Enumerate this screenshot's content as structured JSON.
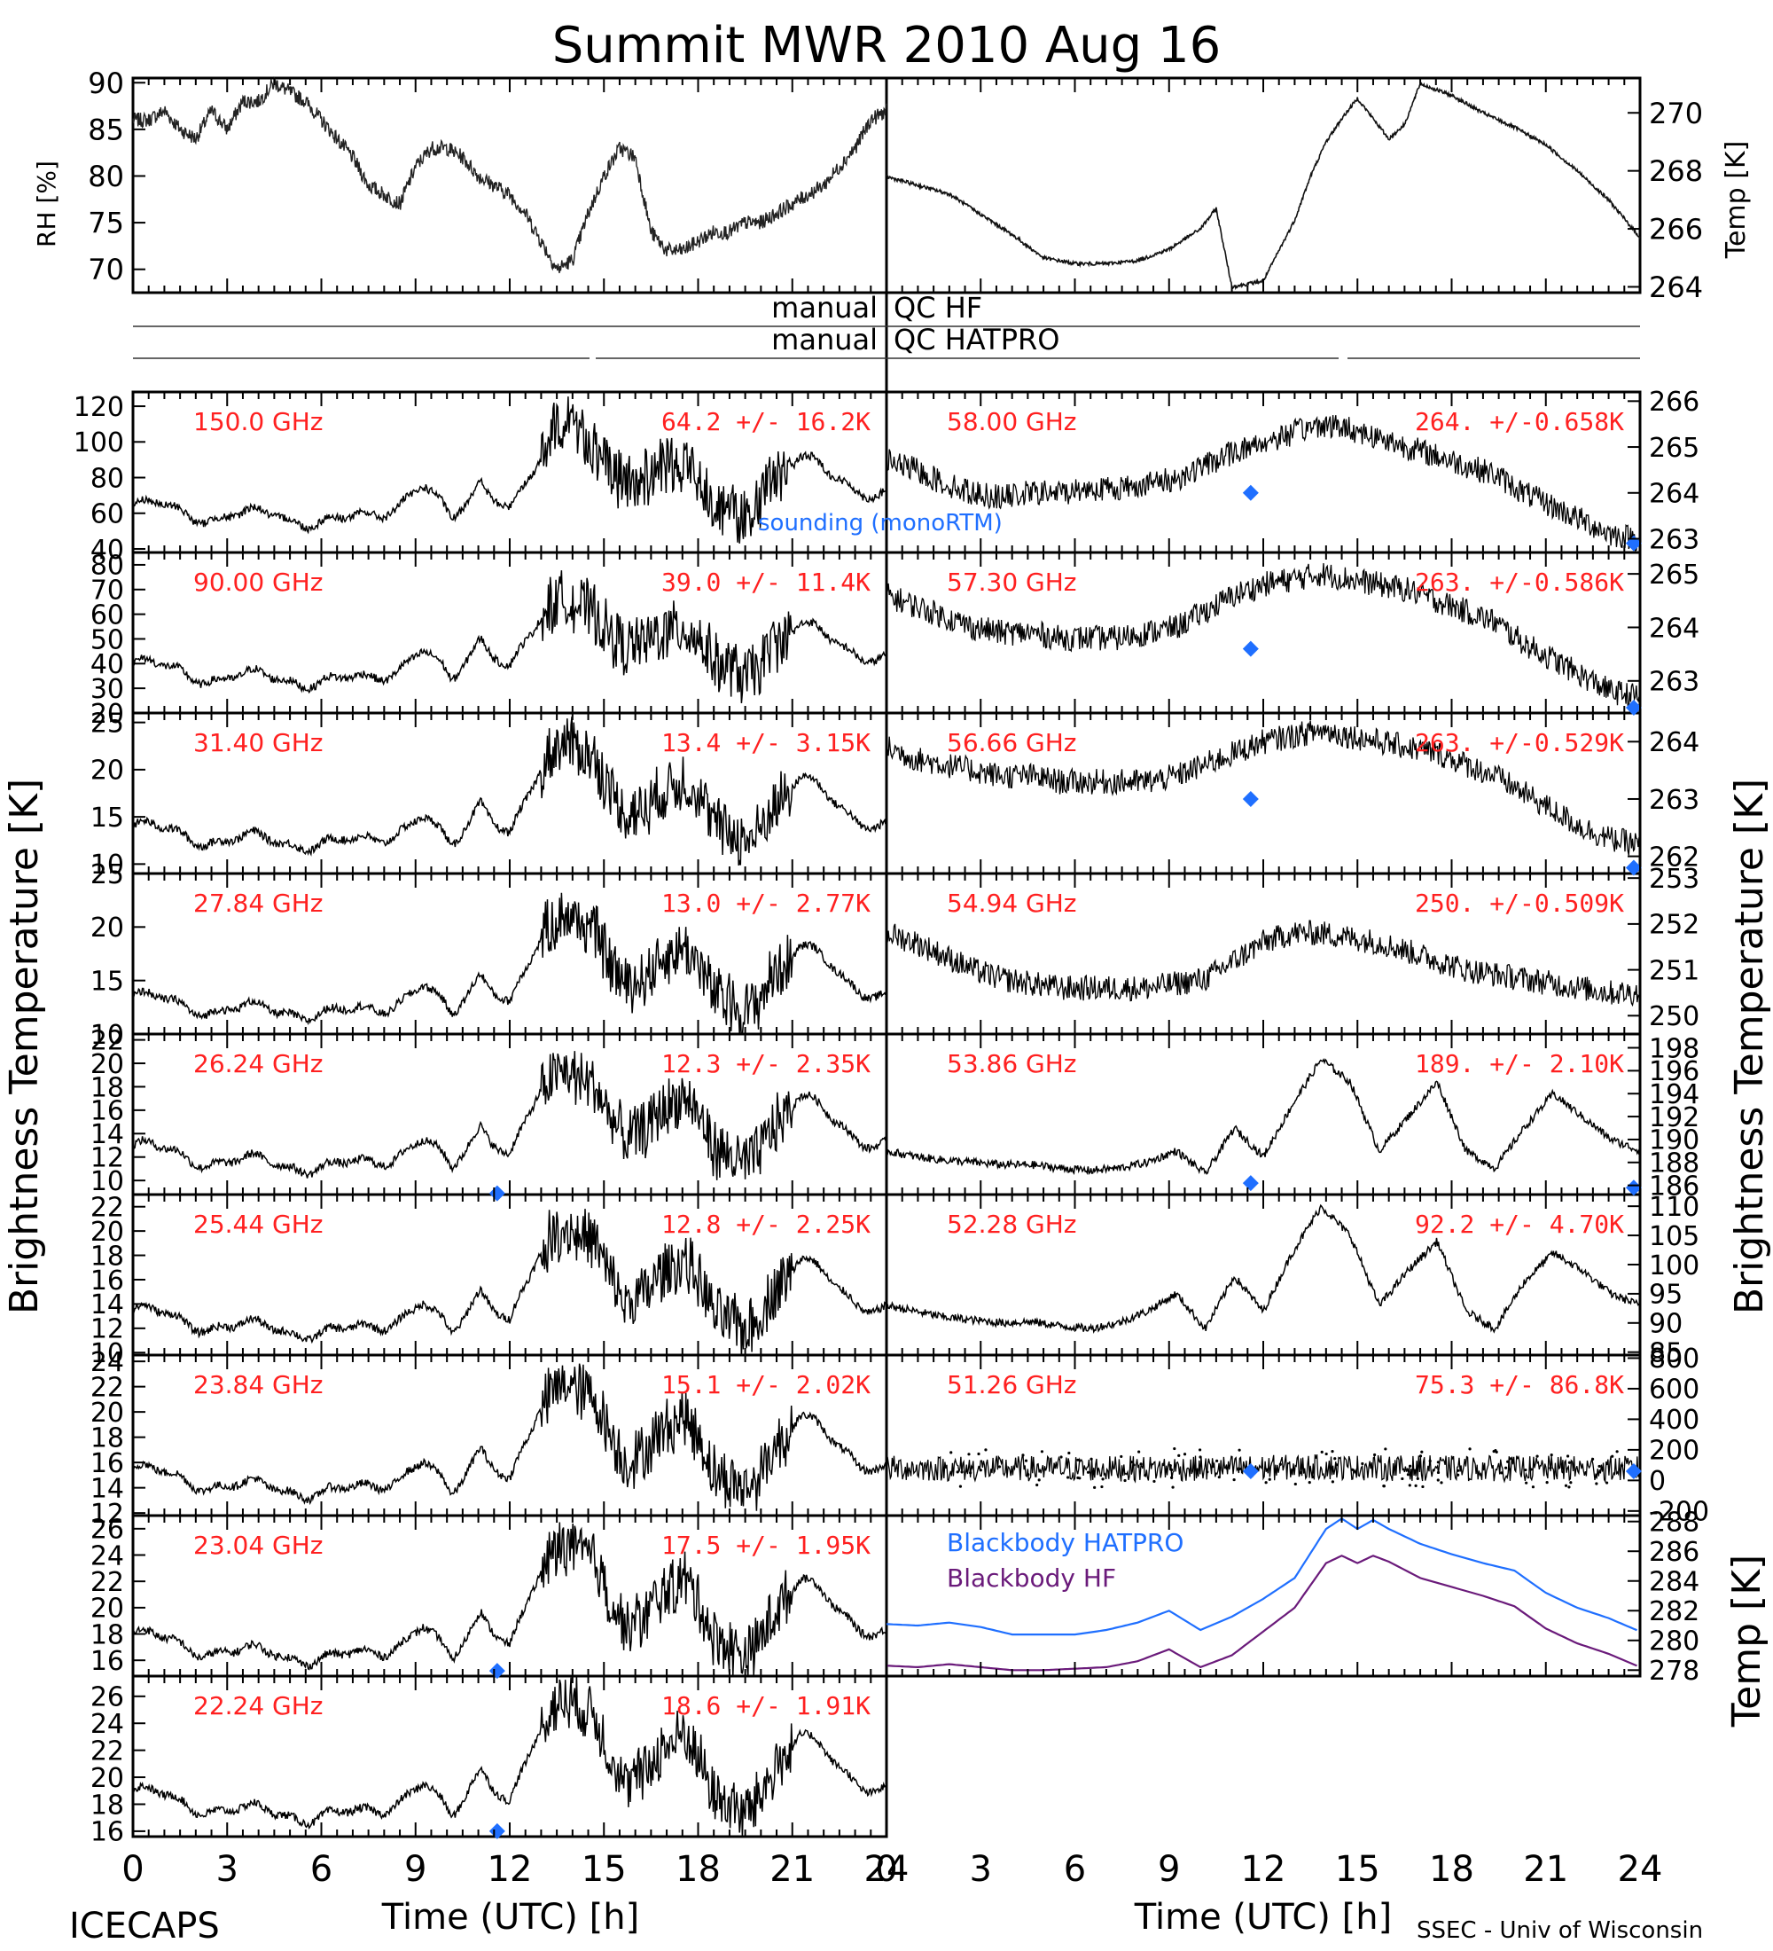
{
  "title": "Summit MWR 2010 Aug 16",
  "footer": {
    "left": "ICECAPS",
    "right": "SSEC - Univ of Wisconsin"
  },
  "colors": {
    "red": "#ff2020",
    "blue": "#1f6fff",
    "purple": "#6a1a7a",
    "black": "#000000"
  },
  "labels": {
    "rh": "RH [%]",
    "temp_top": "Temp [K]",
    "tb_left": "Brightness Temperature [K]",
    "tb_right": "Brightness Temperature [K]",
    "temp_bottom": "Temp [K]",
    "xlabel": "Time (UTC) [h]",
    "sounding": "sounding (monoRTM)",
    "manual": "manual",
    "qc_hf": "QC HF",
    "qc_hatpro": "QC HATPRO",
    "bb_hatpro": "Blackbody HATPRO",
    "bb_hf": "Blackbody HF"
  },
  "x_ticks": [
    "0",
    "3",
    "6",
    "9",
    "12",
    "15",
    "18",
    "21",
    "24"
  ],
  "chart_data": {
    "type": "line",
    "x_range": [
      0,
      24
    ],
    "top_left": {
      "ylim": [
        67.5,
        90.5
      ],
      "ticks": [
        "70",
        "75",
        "80",
        "85",
        "90"
      ],
      "x": [
        0,
        0.5,
        1,
        1.5,
        2,
        2.5,
        3,
        3.5,
        4,
        4.5,
        5,
        5.5,
        6,
        6.5,
        7,
        7.5,
        8,
        8.5,
        9,
        9.5,
        10,
        10.5,
        11,
        11.5,
        12,
        12.5,
        13,
        13.5,
        14,
        14.5,
        15,
        15.5,
        16,
        16.5,
        17,
        17.5,
        18,
        18.5,
        19,
        19.5,
        20,
        20.5,
        21,
        21.5,
        22,
        22.5,
        23,
        23.5,
        24
      ],
      "y": [
        86,
        86,
        87,
        85,
        84,
        87,
        85,
        88,
        88,
        90,
        89,
        88,
        86,
        84,
        82,
        79,
        78,
        77,
        81,
        83,
        83,
        82,
        80,
        79,
        78,
        76,
        73,
        70,
        71,
        76,
        80,
        83,
        82,
        74,
        72,
        72,
        73,
        74,
        74,
        75,
        75,
        76,
        77,
        78,
        79,
        81,
        83,
        86,
        87
      ]
    },
    "top_right": {
      "ylim": [
        263.8,
        271.2
      ],
      "ticks": [
        "264",
        "266",
        "268",
        "270"
      ],
      "x": [
        0,
        1,
        2,
        3,
        4,
        5,
        6,
        7,
        8,
        9,
        10,
        10.5,
        11,
        12,
        13,
        13.5,
        14,
        14.5,
        15,
        15.5,
        16,
        16.5,
        17,
        18,
        19,
        20,
        21,
        22,
        23,
        24
      ],
      "y": [
        267.8,
        267.5,
        267.2,
        266.5,
        265.8,
        265,
        264.8,
        264.8,
        264.9,
        265.3,
        266,
        266.7,
        264,
        264.2,
        266.3,
        267.8,
        269,
        269.8,
        270.5,
        269.8,
        269.1,
        269.6,
        271,
        270.6,
        270,
        269.5,
        268.9,
        268,
        267,
        265.7
      ]
    },
    "panels": [
      {
        "freq": "150.0 GHz",
        "stats": "64.2 +/-  16.2K",
        "ylim": [
          38,
          128
        ],
        "ticks": [
          "40",
          "60",
          "80",
          "100",
          "120"
        ],
        "profile": [
          64,
          63,
          60,
          58,
          58,
          60,
          56,
          54,
          58,
          65,
          75,
          55,
          80,
          62,
          85,
          120,
          95,
          70,
          85,
          92,
          65,
          55,
          80,
          90,
          82,
          75,
          70
        ]
      },
      {
        "freq": "58.00 GHz",
        "stats": "264. +/-0.658K",
        "ylim": [
          262.7,
          266.2
        ],
        "ticks": [
          "263",
          "264",
          "265",
          "266"
        ],
        "profile": [
          264.7,
          264.5,
          264.2,
          264.0,
          263.9,
          264.0,
          264.0,
          264.1,
          264.1,
          264.2,
          264.3,
          264.6,
          264.9,
          265.1,
          265.3,
          265.5,
          265.4,
          265.2,
          265.0,
          264.8,
          264.6,
          264.4,
          264.0,
          263.7,
          263.4,
          263.1,
          263.0
        ],
        "diamonds": [
          [
            11.6,
            264.0
          ],
          [
            23.8,
            262.9
          ]
        ]
      },
      {
        "freq": "90.00 GHz",
        "stats": "39.0 +/-  11.4K",
        "ylim": [
          20,
          85
        ],
        "ticks": [
          "20",
          "30",
          "40",
          "50",
          "60",
          "70",
          "80"
        ],
        "profile": [
          40,
          38,
          36,
          34,
          34,
          35,
          33,
          32,
          34,
          38,
          45,
          32,
          52,
          38,
          55,
          70,
          60,
          42,
          52,
          58,
          40,
          33,
          48,
          55,
          50,
          45,
          42
        ]
      },
      {
        "freq": "57.30 GHz",
        "stats": "263. +/-0.586K",
        "ylim": [
          262.4,
          265.4
        ],
        "ticks": [
          "263",
          "264",
          "265"
        ],
        "profile": [
          264.6,
          264.4,
          264.2,
          264.0,
          263.9,
          263.9,
          263.8,
          263.8,
          263.8,
          263.9,
          264.0,
          264.3,
          264.6,
          264.8,
          264.9,
          265.0,
          264.9,
          264.8,
          264.7,
          264.5,
          264.3,
          264.1,
          263.7,
          263.4,
          263.1,
          262.8,
          262.7
        ],
        "diamonds": [
          [
            11.6,
            263.6
          ],
          [
            23.8,
            262.5
          ]
        ]
      },
      {
        "freq": "31.40 GHz",
        "stats": "13.4 +/- 3.15K",
        "ylim": [
          9,
          26
        ],
        "ticks": [
          "10",
          "15",
          "20",
          "25"
        ],
        "profile": [
          14,
          13.5,
          13,
          12.5,
          12.5,
          12.6,
          12.2,
          12,
          12.5,
          13.5,
          15,
          11.5,
          17,
          13,
          19,
          24,
          21,
          14,
          17,
          20,
          14,
          12,
          16,
          19,
          17,
          15,
          14
        ]
      },
      {
        "freq": "56.66 GHz",
        "stats": "263. +/-0.529K",
        "ylim": [
          261.7,
          264.5
        ],
        "ticks": [
          "262",
          "263",
          "264"
        ],
        "profile": [
          263.9,
          263.7,
          263.6,
          263.5,
          263.4,
          263.4,
          263.3,
          263.3,
          263.3,
          263.3,
          263.4,
          263.6,
          263.8,
          264.0,
          264.1,
          264.2,
          264.1,
          264.0,
          263.9,
          263.8,
          263.6,
          263.4,
          263.1,
          262.8,
          262.5,
          262.3,
          262.2
        ],
        "diamonds": [
          [
            11.6,
            263.0
          ],
          [
            23.8,
            261.8
          ]
        ]
      },
      {
        "freq": "27.84 GHz",
        "stats": "13.0 +/- 2.77K",
        "ylim": [
          10,
          25
        ],
        "ticks": [
          "10",
          "15",
          "20",
          "25"
        ],
        "profile": [
          13.5,
          13,
          12.6,
          12.3,
          12.2,
          12.3,
          12,
          11.8,
          12.2,
          13,
          14.5,
          11.5,
          16,
          12.8,
          18,
          22,
          19.5,
          13.5,
          16.5,
          19,
          13.5,
          11.8,
          15.5,
          18,
          16.5,
          14.5,
          13.5
        ]
      },
      {
        "freq": "54.94 GHz",
        "stats": "250. +/-0.509K",
        "ylim": [
          249.6,
          253.1
        ],
        "ticks": [
          "250",
          "251",
          "252",
          "253"
        ],
        "profile": [
          251.8,
          251.6,
          251.3,
          251.0,
          250.8,
          250.7,
          250.6,
          250.6,
          250.6,
          250.6,
          250.7,
          250.8,
          251.2,
          251.6,
          251.8,
          251.8,
          251.7,
          251.6,
          251.4,
          251.2,
          251.0,
          250.9,
          250.8,
          250.7,
          250.6,
          250.5,
          250.5
        ]
      },
      {
        "freq": "26.24 GHz",
        "stats": "12.3 +/- 2.35K",
        "ylim": [
          8.8,
          22.5
        ],
        "ticks": [
          "10",
          "12",
          "14",
          "16",
          "18",
          "20",
          "22"
        ],
        "profile": [
          13,
          12.5,
          12,
          11.6,
          11.5,
          11.6,
          11.2,
          11,
          11.5,
          12.2,
          13.5,
          10.8,
          15,
          12,
          17,
          20,
          18,
          12.5,
          15.5,
          18,
          12.5,
          11,
          14.5,
          17,
          15.5,
          13.8,
          13
        ],
        "diamonds": [
          [
            11.6,
            8.9
          ]
        ]
      },
      {
        "freq": "53.86 GHz",
        "stats": "189. +/- 2.10K",
        "ylim": [
          185.2,
          199.2
        ],
        "ticks": [
          "186",
          "188",
          "190",
          "192",
          "194",
          "196",
          "198"
        ],
        "profile": [
          189,
          188.5,
          188.2,
          188,
          187.8,
          187.8,
          187.5,
          187.3,
          187.5,
          188,
          189,
          187,
          191,
          188.5,
          193,
          197,
          195,
          189,
          192,
          195,
          189,
          187.5,
          191,
          194,
          192,
          190,
          189
        ],
        "diamonds": [
          [
            11.6,
            186.2
          ],
          [
            23.8,
            185.8
          ]
        ]
      },
      {
        "freq": "25.44 GHz",
        "stats": "12.8 +/- 2.25K",
        "ylim": [
          9.8,
          23
        ],
        "ticks": [
          "10",
          "12",
          "14",
          "16",
          "18",
          "20",
          "22"
        ],
        "profile": [
          13.5,
          13,
          12.5,
          12.2,
          12,
          12.1,
          11.7,
          11.5,
          12,
          12.8,
          14,
          11.3,
          15.5,
          12.5,
          17.5,
          21,
          19,
          13,
          16,
          18.5,
          13,
          11.5,
          15,
          17.5,
          16,
          14.3,
          13.5
        ]
      },
      {
        "freq": "52.28 GHz",
        "stats": "92.2 +/- 4.70K",
        "ylim": [
          84.5,
          112
        ],
        "ticks": [
          "85",
          "90",
          "95",
          "100",
          "105",
          "110"
        ],
        "profile": [
          93,
          92,
          91,
          90.5,
          90,
          90.2,
          89.5,
          89,
          90,
          92,
          95,
          89,
          98,
          92,
          102,
          110,
          105,
          93,
          99,
          104,
          92,
          89,
          97,
          102,
          99,
          95,
          93
        ]
      },
      {
        "freq": "23.84 GHz",
        "stats": "15.1 +/- 2.02K",
        "ylim": [
          11.8,
          24.5
        ],
        "ticks": [
          "12",
          "14",
          "16",
          "18",
          "20",
          "22",
          "24"
        ],
        "profile": [
          15.5,
          15,
          14.6,
          14.2,
          14,
          14.1,
          13.7,
          13.5,
          14,
          14.8,
          16,
          13.2,
          17.5,
          14.5,
          19.5,
          23,
          21,
          15,
          18,
          20.5,
          15,
          13.5,
          17,
          19.5,
          18,
          16.3,
          15.5
        ]
      },
      {
        "freq": "51.26 GHz",
        "stats": "75.3 +/-  86.8K",
        "ylim": [
          -230,
          820
        ],
        "ticks": [
          "-200",
          "0",
          "200",
          "400",
          "600",
          "800"
        ],
        "profile": [
          80,
          80,
          78,
          78,
          78,
          77,
          77,
          77,
          77,
          77,
          78,
          78,
          80,
          82,
          85,
          88,
          86,
          82,
          80,
          80,
          78,
          78,
          78,
          77,
          77,
          77,
          77
        ],
        "diamonds": [
          [
            11.6,
            60
          ],
          [
            23.8,
            60
          ]
        ]
      },
      {
        "freq": "23.04 GHz",
        "stats": "17.5 +/- 1.95K",
        "ylim": [
          14.8,
          27
        ],
        "ticks": [
          "16",
          "18",
          "20",
          "22",
          "24",
          "26"
        ],
        "profile": [
          18,
          17.5,
          17,
          16.7,
          16.5,
          16.6,
          16.2,
          16,
          16.5,
          17.2,
          18.5,
          15.8,
          20,
          17,
          22,
          25.5,
          23.5,
          17.5,
          20.5,
          23,
          17.5,
          16,
          19.5,
          22,
          20.5,
          18.8,
          18
        ],
        "diamonds": [
          [
            11.6,
            15.2
          ]
        ]
      },
      {
        "freq": "",
        "stats": "",
        "ylim": [
          277.6,
          288.4
        ],
        "ticks": [
          "278",
          "280",
          "282",
          "284",
          "286",
          "288"
        ],
        "bb": true,
        "series": [
          {
            "name": "Blackbody HATPRO",
            "x": [
              0,
              1,
              2,
              3,
              4,
              5,
              6,
              7,
              8,
              9,
              10,
              11,
              12,
              13,
              14,
              14.5,
              15,
              15.5,
              16,
              17,
              18,
              19,
              20,
              21,
              22,
              23,
              24
            ],
            "y": [
              281.1,
              281.0,
              281.2,
              280.9,
              280.4,
              280.4,
              280.4,
              280.7,
              281.2,
              282.0,
              280.7,
              281.6,
              282.8,
              284.2,
              287.5,
              288.2,
              287.5,
              288.1,
              287.5,
              286.5,
              285.8,
              285.2,
              284.7,
              283.2,
              282.2,
              281.5,
              280.6
            ]
          },
          {
            "name": "Blackbody HF",
            "x": [
              0,
              1,
              2,
              3,
              4,
              5,
              6,
              7,
              8,
              9,
              10,
              11,
              12,
              13,
              14,
              14.5,
              15,
              15.5,
              16,
              17,
              18,
              19,
              20,
              21,
              22,
              23,
              24
            ],
            "y": [
              278.3,
              278.2,
              278.4,
              278.2,
              278.0,
              278.0,
              278.1,
              278.2,
              278.6,
              279.4,
              278.2,
              279.0,
              280.6,
              282.2,
              285.2,
              285.7,
              285.2,
              285.7,
              285.3,
              284.2,
              283.6,
              283.0,
              282.3,
              280.8,
              279.8,
              279.1,
              278.2
            ]
          }
        ]
      },
      {
        "freq": "22.24 GHz",
        "stats": "18.6 +/- 1.91K",
        "ylim": [
          15.6,
          27.5
        ],
        "ticks": [
          "16",
          "18",
          "20",
          "22",
          "24",
          "26"
        ],
        "profile": [
          19,
          18.5,
          18,
          17.6,
          17.4,
          17.5,
          17.1,
          17,
          17.4,
          18.2,
          19.5,
          16.8,
          21,
          18,
          23,
          26.5,
          24.5,
          18.5,
          21.5,
          24,
          18.5,
          17,
          20.5,
          23,
          21.5,
          19.8,
          19
        ],
        "diamonds": [
          [
            11.6,
            16.0
          ]
        ]
      }
    ]
  }
}
